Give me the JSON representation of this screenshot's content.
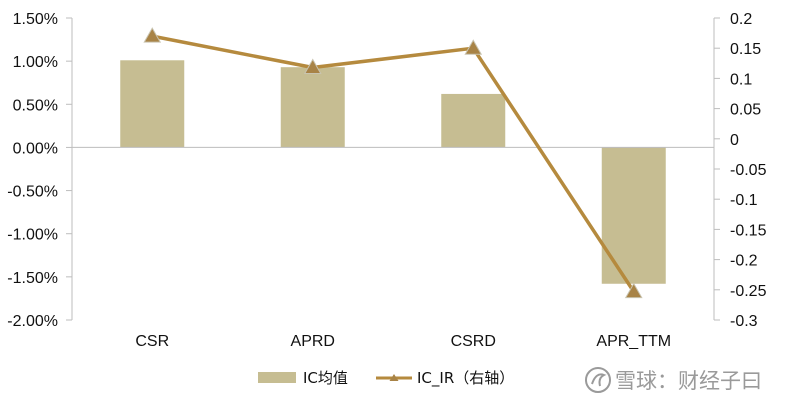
{
  "chart_data": {
    "type": "bar+line",
    "categories": [
      "CSR",
      "APRD",
      "CSRD",
      "APR_TTM"
    ],
    "series": [
      {
        "name": "IC均值",
        "type": "bar",
        "axis": "left",
        "values": [
          1.01,
          0.93,
          0.62,
          -1.58
        ],
        "unit": "%"
      },
      {
        "name": "IC_IR（右轴）",
        "type": "line",
        "axis": "right",
        "values": [
          0.17,
          0.118,
          0.15,
          -0.253
        ],
        "marker": "triangle"
      }
    ],
    "y_left": {
      "ylim": [
        -2.0,
        1.5
      ],
      "ticks": [
        1.5,
        1.0,
        0.5,
        0.0,
        -0.5,
        -1.0,
        -1.5,
        -2.0
      ],
      "tick_labels": [
        "1.50%",
        "1.00%",
        "0.50%",
        "0.00%",
        "-0.50%",
        "-1.00%",
        "-1.50%",
        "-2.00%"
      ]
    },
    "y_right": {
      "ylim": [
        -0.3,
        0.2
      ],
      "ticks": [
        0.2,
        0.15,
        0.1,
        0.05,
        0,
        -0.05,
        -0.1,
        -0.15,
        -0.2,
        -0.25,
        -0.3
      ],
      "tick_labels": [
        "0.2",
        "0.15",
        "0.1",
        "0.05",
        "0",
        "-0.05",
        "-0.1",
        "-0.15",
        "-0.2",
        "-0.25",
        "-0.3"
      ]
    },
    "grid": false,
    "legend_position": "bottom",
    "colors": {
      "bar": "#c6bd92",
      "line": "#b58a3e",
      "marker": "#a88346"
    }
  },
  "watermark": {
    "text": "雪球：财经子曰"
  }
}
